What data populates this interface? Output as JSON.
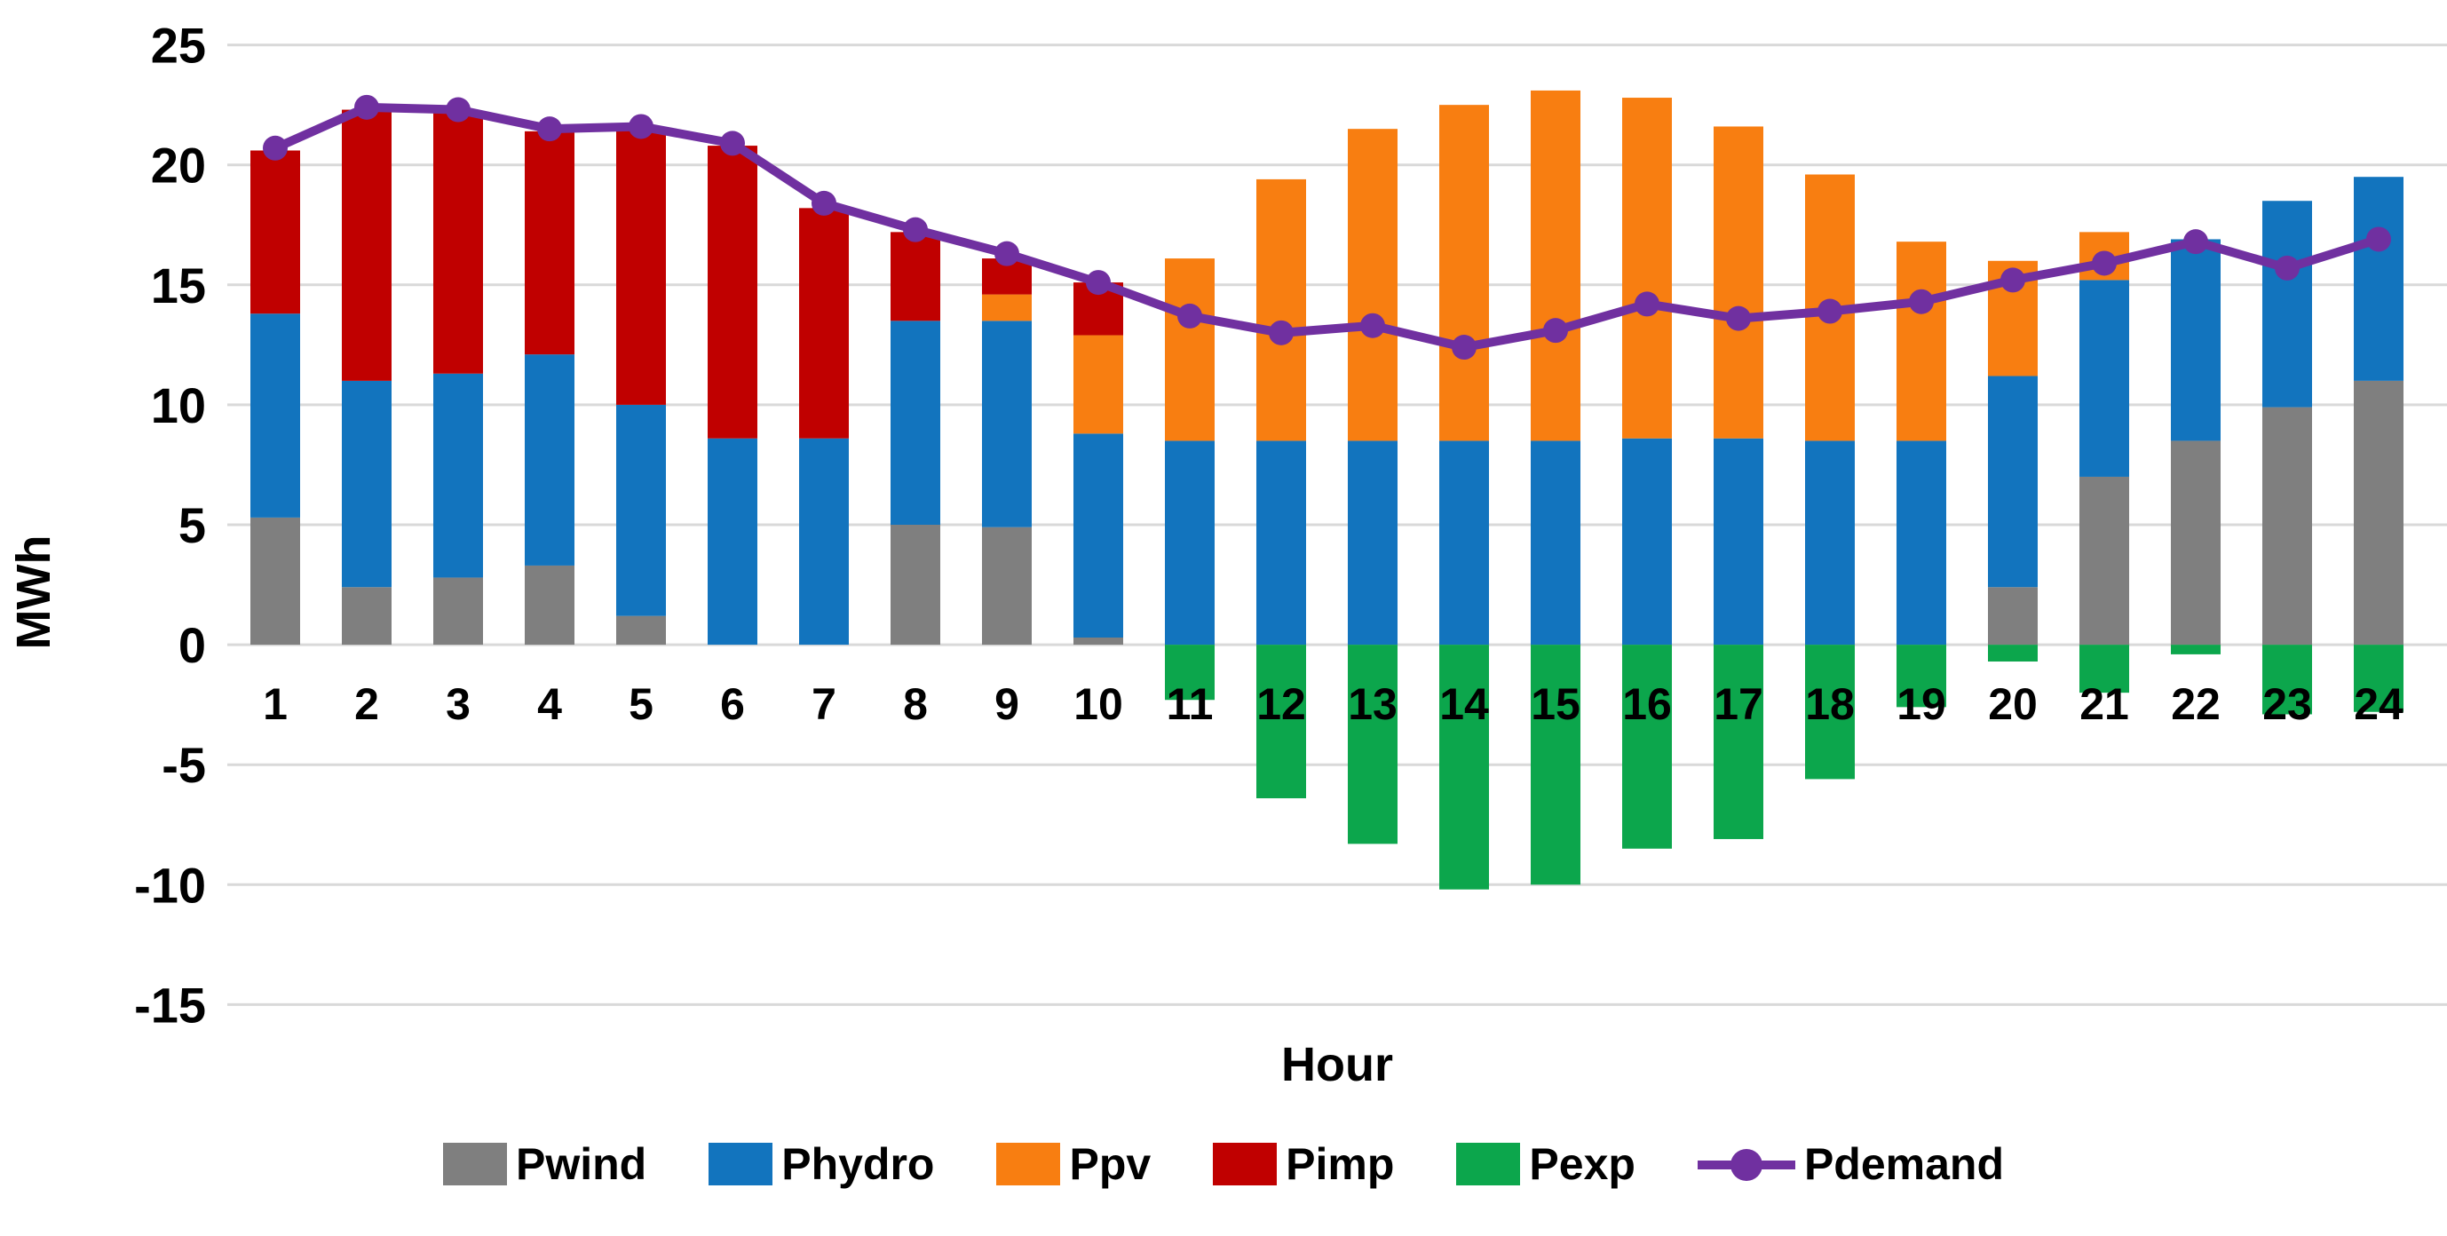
{
  "chart_data": {
    "type": "bar",
    "subtype": "stacked-bar-with-line",
    "title": "",
    "xlabel": "Hour",
    "ylabel": "MWh",
    "ylim": [
      -15,
      25
    ],
    "y_ticks": [
      25,
      20,
      15,
      10,
      5,
      0,
      -5,
      -10,
      -15
    ],
    "grid": true,
    "legend_position": "bottom",
    "categories": [
      1,
      2,
      3,
      4,
      5,
      6,
      7,
      8,
      9,
      10,
      11,
      12,
      13,
      14,
      15,
      16,
      17,
      18,
      19,
      20,
      21,
      22,
      23,
      24
    ],
    "series": [
      {
        "name": "Pwind",
        "type": "bar",
        "color": "#7F7F7F",
        "values": [
          5.3,
          2.4,
          2.8,
          3.3,
          1.2,
          0,
          0,
          5.0,
          4.9,
          0.3,
          0,
          0,
          0,
          0,
          0,
          0,
          0,
          0,
          0,
          2.4,
          7.0,
          8.5,
          9.9,
          11.0
        ]
      },
      {
        "name": "Phydro",
        "type": "bar",
        "color": "#1274BE",
        "values": [
          8.5,
          8.6,
          8.5,
          8.8,
          8.8,
          8.6,
          8.6,
          8.5,
          8.6,
          8.5,
          8.5,
          8.5,
          8.5,
          8.5,
          8.5,
          8.6,
          8.6,
          8.5,
          8.5,
          8.8,
          8.2,
          8.4,
          8.6,
          8.5
        ]
      },
      {
        "name": "Ppv",
        "type": "bar",
        "color": "#F87E11",
        "values": [
          0,
          0,
          0,
          0,
          0,
          0,
          0,
          0,
          1.1,
          4.1,
          7.6,
          10.9,
          13.0,
          14.0,
          14.6,
          14.2,
          13.0,
          11.1,
          8.3,
          4.8,
          2.0,
          0,
          0,
          0
        ]
      },
      {
        "name": "Pimp",
        "type": "bar",
        "color": "#C00000",
        "values": [
          6.8,
          11.3,
          10.9,
          9.3,
          11.5,
          12.2,
          9.6,
          3.7,
          1.5,
          2.2,
          0,
          0,
          0,
          0,
          0,
          0,
          0,
          0,
          0,
          0,
          0,
          0,
          0,
          0
        ]
      },
      {
        "name": "Pexp",
        "type": "bar",
        "color": "#0CA64C",
        "values": [
          0,
          0,
          0,
          0,
          0,
          0,
          0,
          0,
          0,
          0,
          -2.3,
          -6.4,
          -8.3,
          -10.2,
          -10.0,
          -8.5,
          -8.1,
          -5.6,
          -2.6,
          -0.7,
          -2.0,
          -0.4,
          -2.9,
          -2.8
        ]
      },
      {
        "name": "Pdemand",
        "type": "line",
        "color": "#7030A0",
        "values": [
          20.7,
          22.4,
          22.3,
          21.5,
          21.6,
          20.9,
          18.4,
          17.3,
          16.3,
          15.1,
          13.7,
          13.0,
          13.3,
          12.4,
          13.1,
          14.2,
          13.6,
          13.9,
          14.3,
          15.2,
          15.9,
          16.8,
          15.7,
          16.9
        ]
      }
    ]
  },
  "labels": {
    "x_title": "Hour",
    "y_title": "MWh"
  },
  "style": {
    "gridline_color": "#D9D9D9",
    "text_color": "#000000",
    "background": "#FFFFFF"
  }
}
